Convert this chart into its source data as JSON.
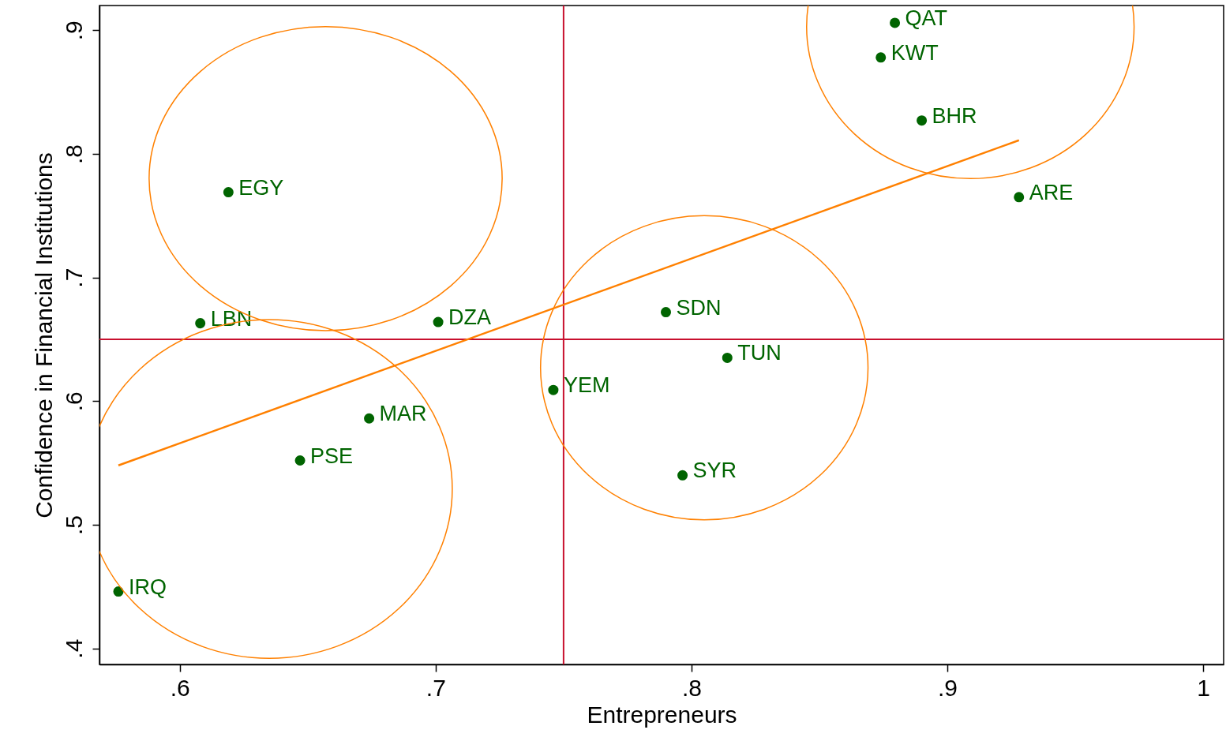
{
  "chart_data": {
    "type": "scatter",
    "xlabel": "Entrepreneurs",
    "ylabel": "Confidence in Financial Institutions",
    "xlim": [
      0.5686,
      1.008
    ],
    "ylim": [
      0.387,
      0.92
    ],
    "xticks": [
      {
        "value": 0.6,
        "label": ".6"
      },
      {
        "value": 0.7,
        "label": ".7"
      },
      {
        "value": 0.8,
        "label": ".8"
      },
      {
        "value": 0.9,
        "label": ".9"
      },
      1
    ],
    "yticks": [
      {
        "value": 0.4,
        "label": ".4"
      },
      {
        "value": 0.5,
        "label": ".5"
      },
      {
        "value": 0.6,
        "label": ".6"
      },
      {
        "value": 0.7,
        "label": ".7"
      },
      {
        "value": 0.8,
        "label": ".8"
      },
      {
        "value": 0.9,
        "label": ".9"
      }
    ],
    "grid": false,
    "series": [
      {
        "type": "scatter",
        "marker": "circle",
        "color": "#006400",
        "x": [
          0.8795,
          0.874,
          0.89,
          0.928,
          0.619,
          0.608,
          0.701,
          0.79,
          0.814,
          0.746,
          0.674,
          0.647,
          0.7965,
          0.576
        ],
        "values": [
          0.906,
          0.878,
          0.827,
          0.765,
          0.769,
          0.663,
          0.664,
          0.672,
          0.635,
          0.609,
          0.586,
          0.552,
          0.54,
          0.446
        ]
      },
      {
        "type": "line",
        "color": "#ff8000",
        "x": [
          0.576,
          0.928
        ],
        "values": [
          0.548,
          0.811
        ]
      }
    ],
    "ref_lines": [
      {
        "axis": "x",
        "value": 0.75,
        "color": "#c8102e"
      },
      {
        "axis": "y",
        "value": 0.65,
        "color": "#c8102e"
      }
    ],
    "annotations": [
      {
        "text": "QAT",
        "x": 0.8795,
        "y": 0.906
      },
      {
        "text": "KWT",
        "x": 0.874,
        "y": 0.878
      },
      {
        "text": "BHR",
        "x": 0.89,
        "y": 0.827
      },
      {
        "text": "ARE",
        "x": 0.928,
        "y": 0.765
      },
      {
        "text": "EGY",
        "x": 0.619,
        "y": 0.769
      },
      {
        "text": "LBN",
        "x": 0.608,
        "y": 0.663
      },
      {
        "text": "DZA",
        "x": 0.701,
        "y": 0.664
      },
      {
        "text": "SDN",
        "x": 0.79,
        "y": 0.672
      },
      {
        "text": "TUN",
        "x": 0.814,
        "y": 0.635
      },
      {
        "text": "YEM",
        "x": 0.746,
        "y": 0.609
      },
      {
        "text": "MAR",
        "x": 0.674,
        "y": 0.586
      },
      {
        "text": "PSE",
        "x": 0.647,
        "y": 0.552
      },
      {
        "text": "SYR",
        "x": 0.7965,
        "y": 0.54
      },
      {
        "text": "IRQ",
        "x": 0.576,
        "y": 0.446
      }
    ]
  }
}
